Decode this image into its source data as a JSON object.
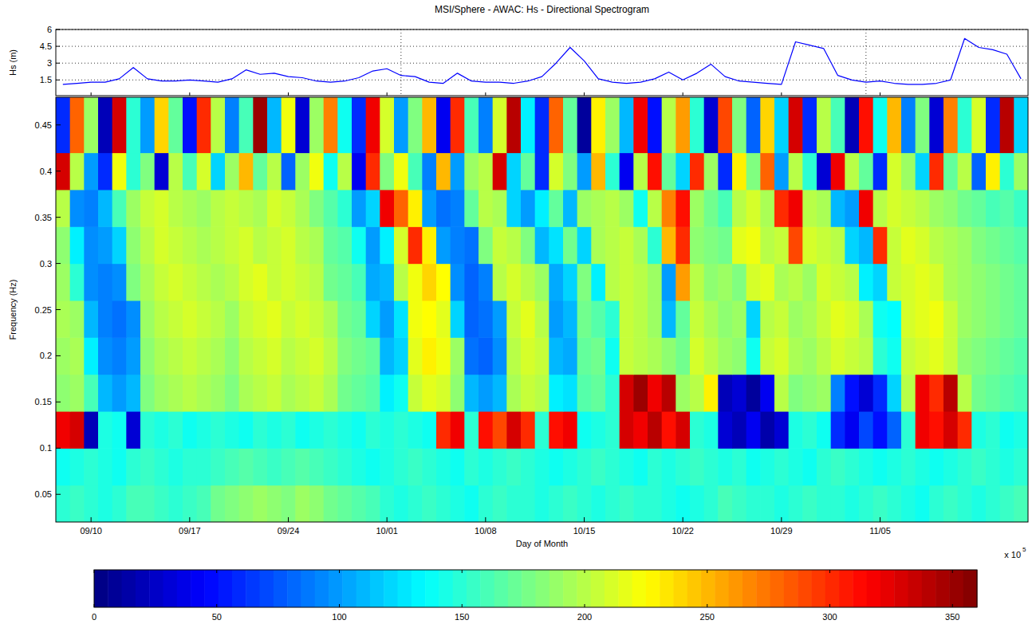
{
  "chart_data": [
    {
      "type": "line",
      "title": "MSI/Sphere - AWAC: Hs - Directional Spectrogram",
      "ylabel": "Hs (m)",
      "x": [
        251,
        252,
        253,
        254,
        255,
        256,
        257,
        258,
        259,
        260,
        261,
        262,
        263,
        264,
        265,
        266,
        267,
        268,
        269,
        270,
        271,
        272,
        273,
        274,
        275,
        276,
        277,
        278,
        279,
        280,
        281,
        282,
        283,
        284,
        285,
        286,
        287,
        288,
        289,
        290,
        291,
        292,
        293,
        294,
        295,
        296,
        297,
        298,
        299,
        300,
        301,
        302,
        303,
        304,
        305,
        306,
        307,
        308,
        309,
        310,
        311,
        312,
        313,
        314,
        315,
        316,
        317,
        318,
        319
      ],
      "series": [
        {
          "color": "#0000ff",
          "values": [
            1.1,
            1.2,
            1.3,
            1.3,
            1.6,
            2.6,
            1.6,
            1.4,
            1.4,
            1.5,
            1.4,
            1.3,
            1.6,
            2.4,
            2.0,
            2.1,
            1.8,
            1.7,
            1.4,
            1.3,
            1.4,
            1.7,
            2.3,
            2.5,
            1.9,
            1.8,
            1.3,
            1.2,
            2.1,
            1.4,
            1.3,
            1.3,
            1.2,
            1.4,
            1.8,
            3.0,
            4.4,
            3.2,
            1.6,
            1.3,
            1.2,
            1.3,
            1.6,
            2.2,
            1.5,
            2.1,
            2.9,
            1.8,
            1.4,
            1.3,
            1.2,
            1.1,
            4.9,
            4.6,
            4.3,
            1.9,
            1.5,
            1.3,
            1.4,
            1.2,
            1.1,
            1.1,
            1.2,
            1.5,
            5.2,
            4.4,
            4.2,
            3.8,
            1.6
          ]
        }
      ],
      "xlim": [
        250.5,
        319.5
      ],
      "xticks": [
        253,
        260,
        267,
        274,
        281,
        288,
        295,
        302,
        309
      ],
      "ylim": [
        0.1,
        6
      ],
      "yticks": [
        1.5,
        3,
        4.5,
        6
      ],
      "vlines": [
        275,
        308
      ],
      "grid": true,
      "tick_labels": "y"
    },
    {
      "type": "heatmap",
      "xlabel": "Day of Month",
      "ylabel": "Frequency (Hz)",
      "grid": false,
      "x": [
        251,
        252,
        253,
        254,
        255,
        256,
        257,
        258,
        259,
        260,
        261,
        262,
        263,
        264,
        265,
        266,
        267,
        268,
        269,
        270,
        271,
        272,
        273,
        274,
        275,
        276,
        277,
        278,
        279,
        280,
        281,
        282,
        283,
        284,
        285,
        286,
        287,
        288,
        289,
        290,
        291,
        292,
        293,
        294,
        295,
        296,
        297,
        298,
        299,
        300,
        301,
        302,
        303,
        304,
        305,
        306,
        307,
        308,
        309,
        310,
        311,
        312,
        313,
        314,
        315,
        316,
        317,
        318,
        319
      ],
      "y_edges": [
        0.02,
        0.06,
        0.1,
        0.14,
        0.18,
        0.22,
        0.26,
        0.3,
        0.34,
        0.38,
        0.42,
        0.48
      ],
      "z": [
        [
          150,
          155,
          150,
          145,
          150,
          160,
          160,
          155,
          150,
          155,
          160,
          175,
          180,
          185,
          190,
          185,
          180,
          190,
          185,
          175,
          170,
          165,
          160,
          150,
          145,
          150,
          155,
          150,
          145,
          140,
          150,
          155,
          150,
          150,
          145,
          150,
          155,
          150,
          145,
          150,
          155,
          150,
          150,
          145,
          140,
          145,
          150,
          160,
          155,
          150,
          150,
          145,
          150,
          155,
          150,
          150,
          145,
          150,
          155,
          150,
          145,
          140,
          150,
          155,
          150,
          145,
          150,
          155,
          160
        ],
        [
          140,
          145,
          150,
          145,
          140,
          150,
          155,
          150,
          145,
          150,
          150,
          155,
          160,
          165,
          160,
          155,
          160,
          165,
          160,
          155,
          150,
          145,
          140,
          145,
          150,
          155,
          150,
          145,
          140,
          150,
          145,
          150,
          155,
          150,
          145,
          140,
          145,
          150,
          155,
          150,
          145,
          140,
          150,
          145,
          150,
          155,
          150,
          145,
          150,
          140,
          145,
          150,
          145,
          140,
          150,
          155,
          150,
          145,
          140,
          145,
          150,
          145,
          140,
          145,
          150,
          155,
          150,
          145,
          150
        ],
        [
          320,
          330,
          20,
          145,
          140,
          30,
          150,
          145,
          150,
          140,
          145,
          150,
          145,
          140,
          150,
          145,
          150,
          140,
          145,
          150,
          145,
          140,
          150,
          145,
          150,
          145,
          140,
          300,
          320,
          150,
          310,
          290,
          330,
          300,
          150,
          310,
          320,
          140,
          145,
          150,
          330,
          320,
          340,
          310,
          330,
          150,
          145,
          30,
          20,
          40,
          15,
          30,
          145,
          150,
          140,
          60,
          40,
          70,
          50,
          80,
          150,
          320,
          310,
          330,
          300,
          145,
          150,
          140,
          145
        ],
        [
          185,
          190,
          160,
          110,
          100,
          110,
          180,
          190,
          195,
          200,
          195,
          190,
          180,
          195,
          200,
          205,
          195,
          200,
          205,
          195,
          175,
          170,
          165,
          130,
          140,
          205,
          215,
          210,
          185,
          110,
          100,
          110,
          195,
          205,
          200,
          130,
          125,
          165,
          170,
          150,
          330,
          350,
          320,
          340,
          190,
          200,
          230,
          20,
          30,
          10,
          40,
          200,
          180,
          185,
          190,
          90,
          50,
          30,
          60,
          120,
          200,
          320,
          300,
          340,
          200,
          175,
          170,
          165,
          160
        ],
        [
          190,
          195,
          130,
          95,
          90,
          100,
          185,
          195,
          200,
          205,
          200,
          195,
          185,
          200,
          205,
          210,
          200,
          205,
          210,
          200,
          180,
          175,
          170,
          110,
          120,
          215,
          230,
          220,
          190,
          85,
          80,
          95,
          200,
          210,
          205,
          110,
          105,
          170,
          175,
          140,
          205,
          200,
          195,
          185,
          175,
          210,
          200,
          190,
          185,
          140,
          205,
          210,
          195,
          190,
          200,
          210,
          205,
          200,
          150,
          140,
          205,
          210,
          215,
          205,
          185,
          180,
          175,
          170,
          165
        ],
        [
          195,
          190,
          110,
          90,
          85,
          95,
          190,
          200,
          205,
          210,
          205,
          200,
          190,
          205,
          210,
          215,
          205,
          210,
          205,
          195,
          175,
          170,
          120,
          100,
          125,
          220,
          225,
          215,
          120,
          80,
          85,
          100,
          205,
          215,
          200,
          100,
          110,
          175,
          165,
          150,
          205,
          200,
          190,
          110,
          170,
          205,
          195,
          185,
          190,
          120,
          200,
          205,
          190,
          195,
          205,
          215,
          210,
          195,
          140,
          135,
          210,
          215,
          220,
          205,
          190,
          185,
          180,
          175,
          170
        ],
        [
          190,
          150,
          95,
          90,
          95,
          180,
          195,
          205,
          210,
          205,
          200,
          195,
          200,
          210,
          215,
          205,
          210,
          205,
          200,
          175,
          170,
          160,
          105,
          110,
          200,
          220,
          240,
          225,
          95,
          80,
          90,
          200,
          210,
          200,
          190,
          105,
          120,
          180,
          130,
          200,
          205,
          200,
          190,
          100,
          260,
          200,
          185,
          190,
          180,
          210,
          215,
          195,
          200,
          190,
          210,
          205,
          200,
          130,
          120,
          205,
          210,
          215,
          210,
          195,
          190,
          185,
          180,
          175,
          170
        ],
        [
          185,
          130,
          95,
          100,
          120,
          185,
          200,
          210,
          205,
          200,
          195,
          200,
          205,
          210,
          200,
          205,
          210,
          200,
          195,
          170,
          165,
          140,
          100,
          130,
          210,
          300,
          230,
          100,
          90,
          85,
          180,
          205,
          200,
          180,
          110,
          125,
          175,
          120,
          195,
          200,
          205,
          195,
          150,
          250,
          300,
          185,
          180,
          175,
          215,
          220,
          200,
          205,
          290,
          210,
          205,
          200,
          120,
          110,
          300,
          205,
          215,
          210,
          200,
          195,
          190,
          180,
          175,
          170,
          165
        ],
        [
          200,
          95,
          90,
          110,
          160,
          190,
          205,
          210,
          200,
          195,
          190,
          200,
          205,
          200,
          195,
          210,
          205,
          195,
          180,
          165,
          150,
          100,
          120,
          320,
          280,
          230,
          100,
          85,
          90,
          170,
          200,
          195,
          120,
          100,
          130,
          170,
          110,
          190,
          195,
          200,
          190,
          140,
          200,
          270,
          310,
          190,
          175,
          160,
          200,
          210,
          195,
          300,
          320,
          200,
          195,
          110,
          100,
          320,
          200,
          210,
          205,
          200,
          190,
          185,
          175,
          170,
          160,
          165,
          155
        ],
        [
          330,
          200,
          100,
          60,
          220,
          150,
          180,
          30,
          200,
          160,
          210,
          120,
          190,
          250,
          170,
          200,
          80,
          190,
          220,
          140,
          200,
          40,
          300,
          180,
          220,
          160,
          90,
          250,
          100,
          190,
          200,
          330,
          120,
          170,
          60,
          210,
          180,
          100,
          250,
          150,
          40,
          200,
          310,
          170,
          120,
          300,
          190,
          60,
          230,
          180,
          280,
          100,
          200,
          150,
          30,
          320,
          200,
          170,
          60,
          210,
          190,
          120,
          300,
          170,
          200,
          80,
          230,
          150,
          190
        ],
        [
          60,
          280,
          190,
          20,
          330,
          150,
          100,
          240,
          170,
          50,
          300,
          200,
          90,
          160,
          350,
          110,
          220,
          30,
          190,
          270,
          140,
          60,
          320,
          210,
          100,
          180,
          250,
          40,
          300,
          160,
          90,
          210,
          340,
          130,
          60,
          280,
          170,
          10,
          230,
          190,
          110,
          320,
          50,
          200,
          260,
          150,
          30,
          290,
          180,
          80,
          240,
          120,
          330,
          60,
          200,
          160,
          20,
          310,
          140,
          250,
          90,
          180,
          30,
          270,
          150,
          210,
          60,
          340,
          120
        ]
      ],
      "xlim": [
        250.5,
        319.5
      ],
      "ylim": [
        0.02,
        0.48
      ],
      "xticks": [
        {
          "value": 253,
          "label": "09/10"
        },
        {
          "value": 260,
          "label": "09/17"
        },
        {
          "value": 267,
          "label": "09/24"
        },
        {
          "value": 274,
          "label": "10/01"
        },
        {
          "value": 281,
          "label": "10/08"
        },
        {
          "value": 288,
          "label": "10/15"
        },
        {
          "value": 295,
          "label": "10/22"
        },
        {
          "value": 302,
          "label": "10/29"
        },
        {
          "value": 309,
          "label": "11/05"
        }
      ],
      "yticks": [
        0.05,
        0.1,
        0.15,
        0.2,
        0.25,
        0.3,
        0.35,
        0.4,
        0.45
      ],
      "zlim": [
        0,
        360
      ],
      "zticks": [
        0,
        50,
        100,
        150,
        200,
        250,
        300,
        350
      ],
      "annotation": {
        "text": "x 10",
        "superscript": "5"
      }
    }
  ]
}
